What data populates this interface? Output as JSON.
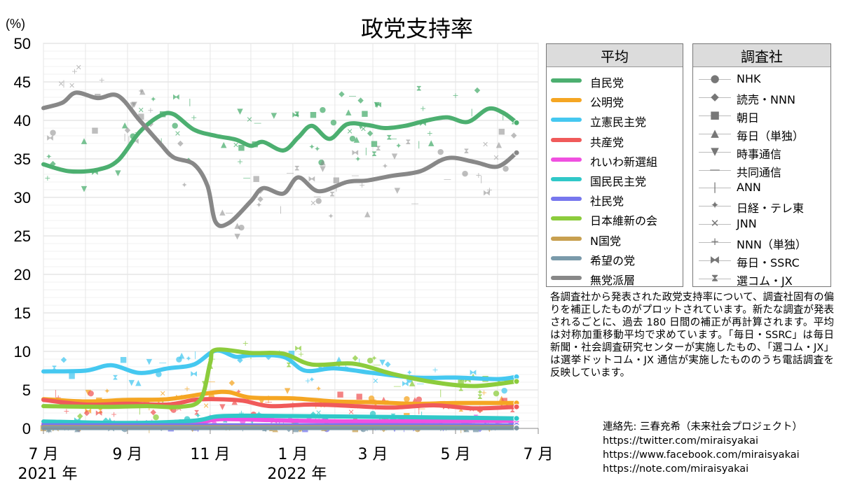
{
  "chart_data": {
    "type": "line",
    "title": "政党支持率",
    "ylabel": "(%)",
    "ylim": [
      0,
      50
    ],
    "yticks": [
      0,
      5,
      10,
      15,
      20,
      25,
      30,
      35,
      40,
      45,
      50
    ],
    "xlim": [
      "2021-07-01",
      "2022-07-01"
    ],
    "xticks": [
      {
        "date": "2021-07-01",
        "label": "7 月",
        "year_label": "2021 年"
      },
      {
        "date": "2021-09-01",
        "label": "9 月",
        "year_label": ""
      },
      {
        "date": "2021-11-01",
        "label": "11 月",
        "year_label": ""
      },
      {
        "date": "2022-01-01",
        "label": "1 月",
        "year_label": "2022 年"
      },
      {
        "date": "2022-03-01",
        "label": "3 月",
        "year_label": ""
      },
      {
        "date": "2022-05-01",
        "label": "5 月",
        "year_label": ""
      },
      {
        "date": "2022-07-01",
        "label": "7 月",
        "year_label": ""
      }
    ],
    "grid": true,
    "legend_heading": "平均",
    "series": [
      {
        "name": "自民党",
        "color": "#4caf70",
        "points": [
          [
            "2021-07-01",
            34.3
          ],
          [
            "2021-07-20",
            33.4
          ],
          [
            "2021-08-10",
            33.6
          ],
          [
            "2021-08-25",
            34.8
          ],
          [
            "2021-09-10",
            38.5
          ],
          [
            "2021-09-25",
            40.6
          ],
          [
            "2021-10-05",
            40.8
          ],
          [
            "2021-10-20",
            38.8
          ],
          [
            "2021-11-05",
            38.0
          ],
          [
            "2021-11-20",
            37.5
          ],
          [
            "2021-12-01",
            36.7
          ],
          [
            "2021-12-10",
            37.2
          ],
          [
            "2021-12-25",
            36.1
          ],
          [
            "2022-01-05",
            37.8
          ],
          [
            "2022-01-15",
            39.3
          ],
          [
            "2022-01-28",
            37.6
          ],
          [
            "2022-02-10",
            39.5
          ],
          [
            "2022-02-25",
            39.4
          ],
          [
            "2022-03-10",
            39.0
          ],
          [
            "2022-03-25",
            39.3
          ],
          [
            "2022-04-10",
            40.0
          ],
          [
            "2022-04-25",
            40.4
          ],
          [
            "2022-05-10",
            39.8
          ],
          [
            "2022-05-25",
            41.5
          ],
          [
            "2022-06-05",
            41.0
          ],
          [
            "2022-06-15",
            39.7
          ]
        ]
      },
      {
        "name": "公明党",
        "color": "#f5a623",
        "points": [
          [
            "2021-07-01",
            3.8
          ],
          [
            "2021-08-01",
            3.5
          ],
          [
            "2021-09-01",
            3.7
          ],
          [
            "2021-10-01",
            3.8
          ],
          [
            "2021-11-01",
            4.6
          ],
          [
            "2021-11-15",
            4.7
          ],
          [
            "2021-12-01",
            4.0
          ],
          [
            "2022-01-01",
            3.9
          ],
          [
            "2022-02-01",
            3.5
          ],
          [
            "2022-03-01",
            3.4
          ],
          [
            "2022-04-01",
            3.2
          ],
          [
            "2022-05-01",
            3.3
          ],
          [
            "2022-06-15",
            3.3
          ]
        ]
      },
      {
        "name": "立憲民主党",
        "color": "#45c8f0",
        "points": [
          [
            "2021-07-01",
            7.4
          ],
          [
            "2021-08-01",
            7.5
          ],
          [
            "2021-08-20",
            8.2
          ],
          [
            "2021-09-10",
            7.2
          ],
          [
            "2021-10-01",
            7.8
          ],
          [
            "2021-10-20",
            8.3
          ],
          [
            "2021-11-05",
            10.1
          ],
          [
            "2021-11-20",
            9.3
          ],
          [
            "2021-12-01",
            9.5
          ],
          [
            "2021-12-25",
            9.3
          ],
          [
            "2022-01-10",
            7.5
          ],
          [
            "2022-02-01",
            7.8
          ],
          [
            "2022-03-01",
            7.2
          ],
          [
            "2022-04-01",
            6.6
          ],
          [
            "2022-05-01",
            6.6
          ],
          [
            "2022-06-01",
            6.4
          ],
          [
            "2022-06-15",
            6.7
          ]
        ]
      },
      {
        "name": "共産党",
        "color": "#f05a5a",
        "points": [
          [
            "2021-07-01",
            3.7
          ],
          [
            "2021-08-01",
            3.1
          ],
          [
            "2021-09-01",
            3.2
          ],
          [
            "2021-10-01",
            3.1
          ],
          [
            "2021-10-20",
            3.7
          ],
          [
            "2021-11-05",
            3.8
          ],
          [
            "2021-11-25",
            3.6
          ],
          [
            "2021-12-15",
            2.9
          ],
          [
            "2022-01-15",
            3.1
          ],
          [
            "2022-02-15",
            2.9
          ],
          [
            "2022-03-15",
            2.7
          ],
          [
            "2022-04-15",
            3.0
          ],
          [
            "2022-05-15",
            2.6
          ],
          [
            "2022-06-15",
            2.8
          ]
        ]
      },
      {
        "name": "れいわ新選組",
        "color": "#f050e0",
        "points": [
          [
            "2021-07-01",
            0.6
          ],
          [
            "2021-09-01",
            0.5
          ],
          [
            "2021-10-20",
            0.7
          ],
          [
            "2021-11-10",
            1.2
          ],
          [
            "2022-01-01",
            1.0
          ],
          [
            "2022-03-01",
            0.9
          ],
          [
            "2022-06-15",
            1.0
          ]
        ]
      },
      {
        "name": "国民民主党",
        "color": "#30c8c8",
        "points": [
          [
            "2021-07-01",
            0.9
          ],
          [
            "2021-09-01",
            0.7
          ],
          [
            "2021-10-20",
            1.0
          ],
          [
            "2021-11-10",
            1.6
          ],
          [
            "2022-01-01",
            1.6
          ],
          [
            "2022-03-01",
            1.5
          ],
          [
            "2022-05-01",
            1.4
          ],
          [
            "2022-06-15",
            1.3
          ]
        ]
      },
      {
        "name": "社民党",
        "color": "#7777ee",
        "points": [
          [
            "2021-07-01",
            0.4
          ],
          [
            "2021-12-01",
            0.4
          ],
          [
            "2022-06-15",
            0.4
          ]
        ]
      },
      {
        "name": "日本維新の会",
        "color": "#8ccc3c",
        "points": [
          [
            "2021-07-01",
            2.9
          ],
          [
            "2021-08-15",
            2.8
          ],
          [
            "2021-09-15",
            2.9
          ],
          [
            "2021-10-10",
            2.8
          ],
          [
            "2021-10-25",
            3.8
          ],
          [
            "2021-11-01",
            8.5
          ],
          [
            "2021-11-05",
            10.2
          ],
          [
            "2021-12-01",
            9.8
          ],
          [
            "2021-12-25",
            9.7
          ],
          [
            "2022-01-15",
            8.3
          ],
          [
            "2022-02-15",
            8.4
          ],
          [
            "2022-03-15",
            7.1
          ],
          [
            "2022-04-15",
            6.0
          ],
          [
            "2022-05-15",
            5.5
          ],
          [
            "2022-06-15",
            6.1
          ]
        ]
      },
      {
        "name": "N国党",
        "color": "#c8a050",
        "points": [
          [
            "2021-07-01",
            0.15
          ],
          [
            "2022-06-15",
            0.15
          ]
        ]
      },
      {
        "name": "希望の党",
        "color": "#7a9aaa",
        "points": [
          [
            "2021-07-01",
            0.05
          ],
          [
            "2022-06-15",
            0.05
          ]
        ]
      },
      {
        "name": "無党派層",
        "color": "#888888",
        "points": [
          [
            "2021-07-01",
            41.6
          ],
          [
            "2021-07-15",
            42.3
          ],
          [
            "2021-07-25",
            43.6
          ],
          [
            "2021-08-10",
            42.9
          ],
          [
            "2021-08-25",
            43.2
          ],
          [
            "2021-09-10",
            40.0
          ],
          [
            "2021-09-25",
            37.0
          ],
          [
            "2021-10-05",
            35.2
          ],
          [
            "2021-10-20",
            34.3
          ],
          [
            "2021-10-30",
            31.5
          ],
          [
            "2021-11-05",
            26.8
          ],
          [
            "2021-11-15",
            26.7
          ],
          [
            "2021-12-01",
            29.5
          ],
          [
            "2021-12-10",
            31.2
          ],
          [
            "2021-12-25",
            30.5
          ],
          [
            "2022-01-05",
            32.6
          ],
          [
            "2022-01-20",
            30.8
          ],
          [
            "2022-02-10",
            32.0
          ],
          [
            "2022-02-25",
            32.2
          ],
          [
            "2022-03-15",
            32.8
          ],
          [
            "2022-04-05",
            33.4
          ],
          [
            "2022-04-25",
            35.1
          ],
          [
            "2022-05-15",
            34.6
          ],
          [
            "2022-06-01",
            34.0
          ],
          [
            "2022-06-15",
            35.8
          ]
        ]
      }
    ],
    "source_legend_heading": "調査社",
    "sources": [
      {
        "name": "NHK",
        "marker": "●"
      },
      {
        "name": "読売・NNN",
        "marker": "◆"
      },
      {
        "name": "朝日",
        "marker": "■"
      },
      {
        "name": "毎日（単独）",
        "marker": "▲"
      },
      {
        "name": "時事通信",
        "marker": "▼"
      },
      {
        "name": "共同通信",
        "marker": "—"
      },
      {
        "name": "ANN",
        "marker": "|"
      },
      {
        "name": "日経・テレ東",
        "marker": "✦"
      },
      {
        "name": "JNN",
        "marker": "✕"
      },
      {
        "name": "NNN（単独）",
        "marker": "+"
      },
      {
        "name": "毎日・SSRC",
        "marker": "⧓"
      },
      {
        "name": "選コム・JX",
        "marker": "⧗"
      }
    ]
  },
  "note": "各調査社から発表された政党支持率について、調査社固有の偏りを補正したものがプロットされています。新たな調査が発表されるごとに、過去 180 日間の補正が再計算されます。平均は対称加重移動平均で求めています。「毎日・SSRC」は毎日新聞・社会調査研究センターが実施したもの、「選コム・JX」は選挙ドットコム・JX 通信が実施したもののうち電話調査を反映しています。",
  "contact": [
    "連絡先: 三春充希（未来社会プロジェクト）",
    "https://twitter.com/miraisyakai",
    "https://www.facebook.com/miraisyakai",
    "https://note.com/miraisyakai"
  ]
}
